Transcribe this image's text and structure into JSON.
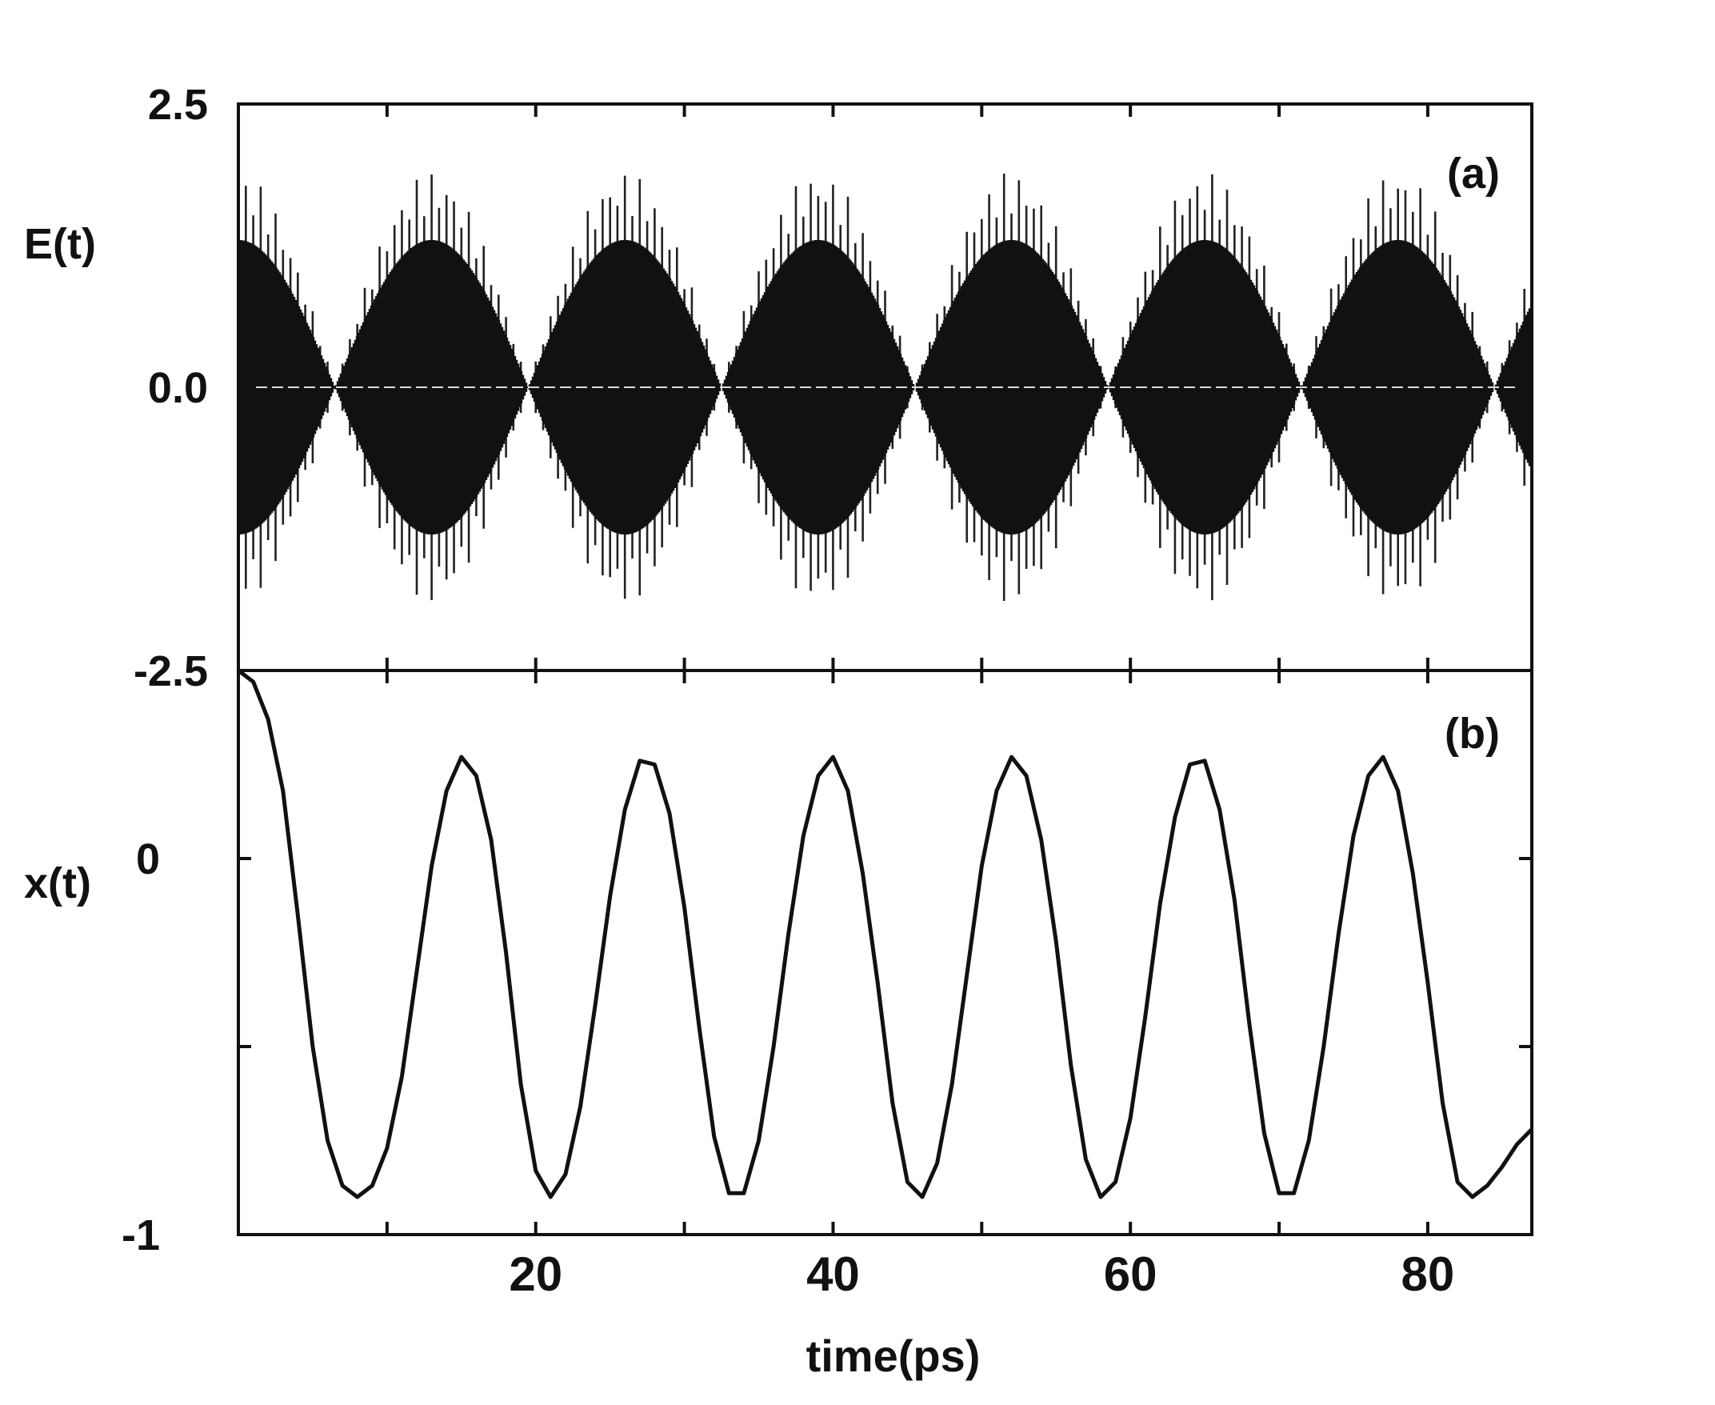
{
  "chart_data": [
    {
      "panel": "(a)",
      "type": "line",
      "ylabel": "E(t)",
      "xlim": [
        0,
        87
      ],
      "ylim": [
        -2.5,
        2.5
      ],
      "yticks": [
        {
          "value": 2.5,
          "label": "2.5"
        },
        {
          "value": 0.0,
          "label": "0.0"
        },
        {
          "value": -2.5,
          "label": "-2.5"
        }
      ],
      "envelope": {
        "carrier_period_ps": 0.5,
        "beat_period_ps": 13,
        "node_times_ps": [
          6.5,
          19.5,
          32.5,
          45.5,
          58.5,
          71.5,
          84.5
        ],
        "envelope_peak": 1.9,
        "core_peak": 1.3
      },
      "grid": false,
      "legend": "none"
    },
    {
      "panel": "(b)",
      "type": "line",
      "ylabel": "x(t)",
      "xlabel": "time(ps)",
      "xlim": [
        0,
        87
      ],
      "ylim": [
        -1,
        0.5
      ],
      "xticks": [
        {
          "value": 20,
          "label": "20"
        },
        {
          "value": 40,
          "label": "40"
        },
        {
          "value": 60,
          "label": "60"
        },
        {
          "value": 80,
          "label": "80"
        }
      ],
      "yticks": [
        {
          "value": 0,
          "label": "0"
        },
        {
          "value": -1,
          "label": "-1"
        }
      ],
      "series": [
        {
          "points": [
            [
              0,
              0.5
            ],
            [
              1,
              0.47
            ],
            [
              2,
              0.37
            ],
            [
              3,
              0.18
            ],
            [
              4,
              -0.15
            ],
            [
              5,
              -0.5
            ],
            [
              6,
              -0.75
            ],
            [
              7,
              -0.87
            ],
            [
              8,
              -0.9
            ],
            [
              9,
              -0.87
            ],
            [
              10,
              -0.77
            ],
            [
              11,
              -0.58
            ],
            [
              12,
              -0.3
            ],
            [
              13,
              -0.02
            ],
            [
              14,
              0.18
            ],
            [
              15,
              0.27
            ],
            [
              16,
              0.22
            ],
            [
              17,
              0.05
            ],
            [
              18,
              -0.25
            ],
            [
              19,
              -0.6
            ],
            [
              20,
              -0.83
            ],
            [
              21,
              -0.9
            ],
            [
              22,
              -0.84
            ],
            [
              23,
              -0.66
            ],
            [
              24,
              -0.39
            ],
            [
              25,
              -0.1
            ],
            [
              26,
              0.13
            ],
            [
              27,
              0.26
            ],
            [
              28,
              0.25
            ],
            [
              29,
              0.12
            ],
            [
              30,
              -0.13
            ],
            [
              31,
              -0.45
            ],
            [
              32,
              -0.74
            ],
            [
              33,
              -0.89
            ],
            [
              34,
              -0.89
            ],
            [
              35,
              -0.75
            ],
            [
              36,
              -0.5
            ],
            [
              37,
              -0.2
            ],
            [
              38,
              0.06
            ],
            [
              39,
              0.22
            ],
            [
              40,
              0.27
            ],
            [
              41,
              0.18
            ],
            [
              42,
              -0.04
            ],
            [
              43,
              -0.33
            ],
            [
              44,
              -0.65
            ],
            [
              45,
              -0.86
            ],
            [
              46,
              -0.9
            ],
            [
              47,
              -0.81
            ],
            [
              48,
              -0.6
            ],
            [
              49,
              -0.31
            ],
            [
              50,
              -0.02
            ],
            [
              51,
              0.18
            ],
            [
              52,
              0.27
            ],
            [
              53,
              0.22
            ],
            [
              54,
              0.05
            ],
            [
              55,
              -0.22
            ],
            [
              56,
              -0.55
            ],
            [
              57,
              -0.8
            ],
            [
              58,
              -0.9
            ],
            [
              59,
              -0.86
            ],
            [
              60,
              -0.69
            ],
            [
              61,
              -0.42
            ],
            [
              62,
              -0.12
            ],
            [
              63,
              0.11
            ],
            [
              64,
              0.25
            ],
            [
              65,
              0.26
            ],
            [
              66,
              0.13
            ],
            [
              67,
              -0.11
            ],
            [
              68,
              -0.44
            ],
            [
              69,
              -0.73
            ],
            [
              70,
              -0.89
            ],
            [
              71,
              -0.89
            ],
            [
              72,
              -0.75
            ],
            [
              73,
              -0.5
            ],
            [
              74,
              -0.2
            ],
            [
              75,
              0.06
            ],
            [
              76,
              0.22
            ],
            [
              77,
              0.27
            ],
            [
              78,
              0.18
            ],
            [
              79,
              -0.04
            ],
            [
              80,
              -0.33
            ],
            [
              81,
              -0.65
            ],
            [
              82,
              -0.86
            ],
            [
              83,
              -0.9
            ],
            [
              84,
              -0.87
            ],
            [
              85,
              -0.82
            ],
            [
              86,
              -0.76
            ],
            [
              87,
              -0.72
            ]
          ]
        }
      ],
      "grid": false,
      "legend": "none"
    }
  ]
}
